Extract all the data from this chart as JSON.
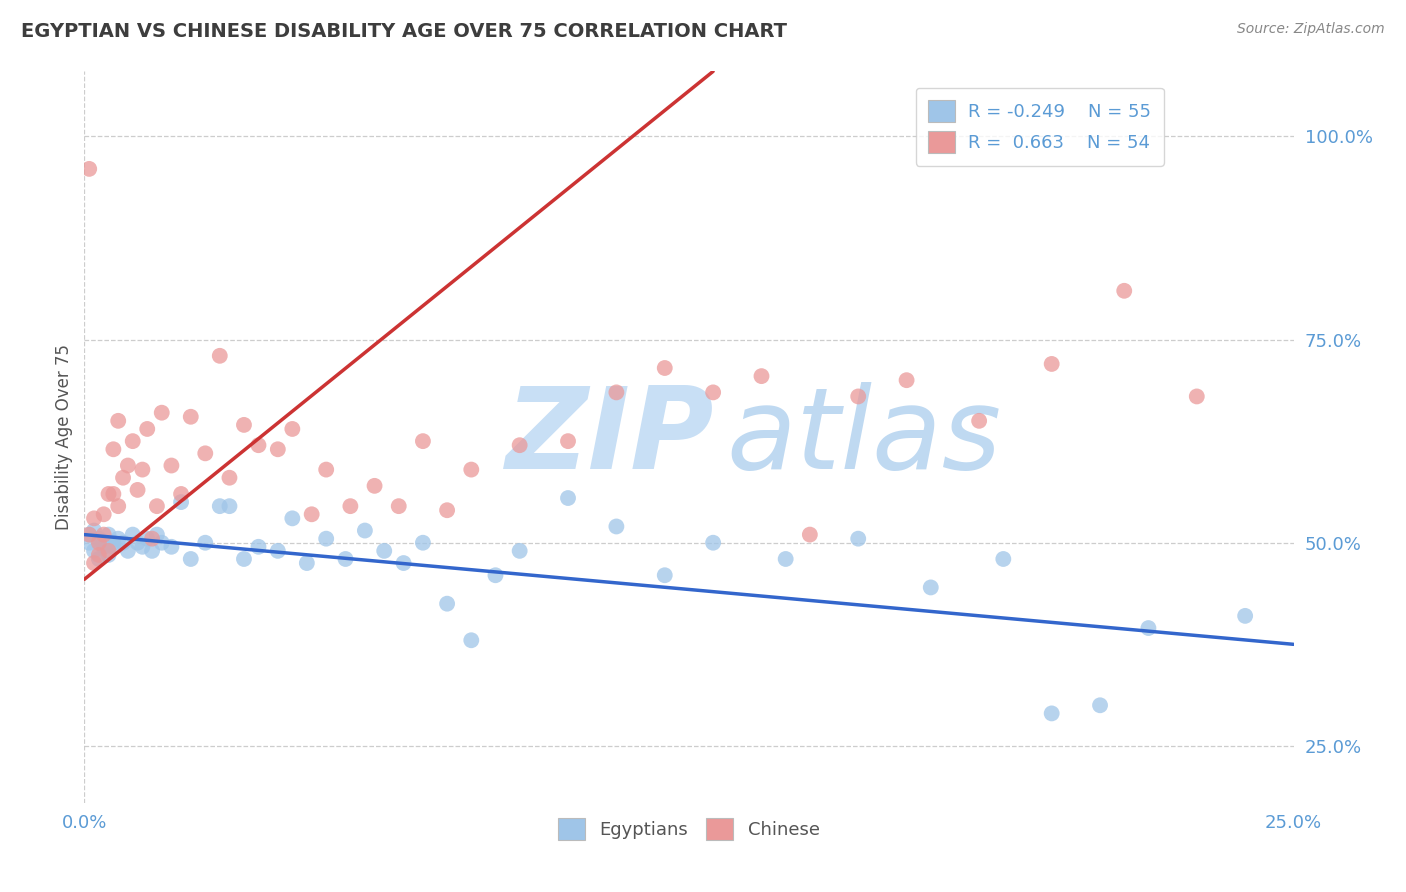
{
  "title": "EGYPTIAN VS CHINESE DISABILITY AGE OVER 75 CORRELATION CHART",
  "source": "Source: ZipAtlas.com",
  "ylabel": "Disability Age Over 75",
  "xlim": [
    0.0,
    0.25
  ],
  "ylim": [
    0.18,
    1.08
  ],
  "yticks": [
    0.25,
    0.5,
    0.75,
    1.0
  ],
  "ytick_labels": [
    "25.0%",
    "50.0%",
    "75.0%",
    "100.0%"
  ],
  "legend_r1": "R = -0.249",
  "legend_n1": "N = 55",
  "legend_r2": "R =  0.663",
  "legend_n2": "N = 54",
  "blue_dot_color": "#9fc5e8",
  "pink_dot_color": "#ea9999",
  "blue_line_color": "#3366cc",
  "pink_line_color": "#cc3333",
  "title_color": "#3d3d3d",
  "axis_color": "#5b9bd5",
  "watermark_zip_color": "#c8dff5",
  "watermark_atlas_color": "#b8d5f0",
  "background_color": "#ffffff",
  "grid_color": "#c8c8c8",
  "egyptians_x": [
    0.001,
    0.001,
    0.002,
    0.002,
    0.003,
    0.003,
    0.004,
    0.004,
    0.005,
    0.005,
    0.006,
    0.006,
    0.007,
    0.008,
    0.009,
    0.01,
    0.011,
    0.012,
    0.013,
    0.014,
    0.015,
    0.016,
    0.018,
    0.02,
    0.022,
    0.025,
    0.028,
    0.03,
    0.033,
    0.036,
    0.04,
    0.043,
    0.046,
    0.05,
    0.054,
    0.058,
    0.062,
    0.066,
    0.07,
    0.075,
    0.08,
    0.085,
    0.09,
    0.1,
    0.11,
    0.12,
    0.13,
    0.145,
    0.16,
    0.175,
    0.19,
    0.2,
    0.21,
    0.22,
    0.24
  ],
  "egyptians_y": [
    0.5,
    0.51,
    0.49,
    0.515,
    0.48,
    0.505,
    0.5,
    0.495,
    0.51,
    0.485,
    0.5,
    0.495,
    0.505,
    0.5,
    0.49,
    0.51,
    0.5,
    0.495,
    0.505,
    0.49,
    0.51,
    0.5,
    0.495,
    0.55,
    0.48,
    0.5,
    0.545,
    0.545,
    0.48,
    0.495,
    0.49,
    0.53,
    0.475,
    0.505,
    0.48,
    0.515,
    0.49,
    0.475,
    0.5,
    0.425,
    0.38,
    0.46,
    0.49,
    0.555,
    0.52,
    0.46,
    0.5,
    0.48,
    0.505,
    0.445,
    0.48,
    0.29,
    0.3,
    0.395,
    0.41
  ],
  "chinese_x": [
    0.001,
    0.001,
    0.002,
    0.002,
    0.003,
    0.003,
    0.004,
    0.004,
    0.005,
    0.005,
    0.006,
    0.006,
    0.007,
    0.007,
    0.008,
    0.009,
    0.01,
    0.011,
    0.012,
    0.013,
    0.014,
    0.015,
    0.016,
    0.018,
    0.02,
    0.022,
    0.025,
    0.028,
    0.03,
    0.033,
    0.036,
    0.04,
    0.043,
    0.047,
    0.05,
    0.055,
    0.06,
    0.065,
    0.07,
    0.075,
    0.08,
    0.09,
    0.1,
    0.11,
    0.12,
    0.13,
    0.14,
    0.15,
    0.16,
    0.17,
    0.185,
    0.2,
    0.215,
    0.23
  ],
  "chinese_y": [
    0.96,
    0.51,
    0.475,
    0.53,
    0.485,
    0.5,
    0.51,
    0.535,
    0.56,
    0.49,
    0.615,
    0.56,
    0.545,
    0.65,
    0.58,
    0.595,
    0.625,
    0.565,
    0.59,
    0.64,
    0.505,
    0.545,
    0.66,
    0.595,
    0.56,
    0.655,
    0.61,
    0.73,
    0.58,
    0.645,
    0.62,
    0.615,
    0.64,
    0.535,
    0.59,
    0.545,
    0.57,
    0.545,
    0.625,
    0.54,
    0.59,
    0.62,
    0.625,
    0.685,
    0.715,
    0.685,
    0.705,
    0.51,
    0.68,
    0.7,
    0.65,
    0.72,
    0.81,
    0.68
  ],
  "blue_line_x": [
    0.0,
    0.25
  ],
  "blue_line_y": [
    0.51,
    0.375
  ],
  "pink_line_x": [
    0.0,
    0.13
  ],
  "pink_line_y": [
    0.455,
    1.08
  ]
}
